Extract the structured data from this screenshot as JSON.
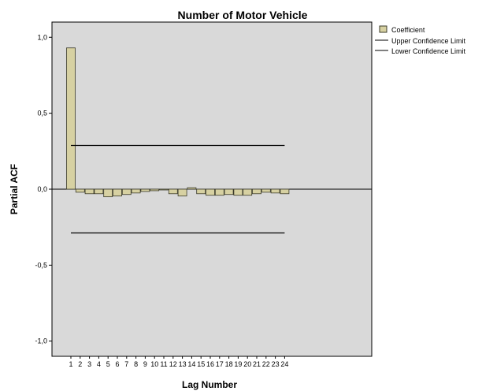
{
  "chart_data": {
    "type": "bar",
    "title": "Number of Motor Vehicle",
    "xlabel": "Lag Number",
    "ylabel": "Partial ACF",
    "ylim": [
      -1.1,
      1.1
    ],
    "yticks": [
      1.0,
      0.5,
      0.0,
      -0.5,
      -1.0
    ],
    "ytick_labels": [
      "1,0",
      "0,5",
      "0,0",
      "-0,5",
      "-1,0"
    ],
    "categories": [
      "1",
      "2",
      "3",
      "4",
      "5",
      "6",
      "7",
      "8",
      "9",
      "10",
      "11",
      "12",
      "13",
      "14",
      "15",
      "16",
      "17",
      "18",
      "19",
      "20",
      "21",
      "22",
      "23",
      "24"
    ],
    "values": [
      0.93,
      -0.02,
      -0.03,
      -0.03,
      -0.05,
      -0.045,
      -0.035,
      -0.025,
      -0.015,
      -0.01,
      -0.005,
      -0.03,
      -0.045,
      0.01,
      -0.03,
      -0.04,
      -0.04,
      -0.035,
      -0.04,
      -0.04,
      -0.03,
      -0.02,
      -0.025,
      -0.03
    ],
    "upper_confidence_limit": 0.288,
    "lower_confidence_limit": -0.288,
    "legend": {
      "position": "top-right",
      "items": [
        "Coefficient",
        "Upper Confidence Limit",
        "Lower Confidence Limit"
      ]
    },
    "colors": {
      "bar_fill": "#D7D1A2",
      "bar_stroke": "#3A3A2A",
      "plot_bg": "#D9D9D9",
      "line": "#000000"
    }
  }
}
